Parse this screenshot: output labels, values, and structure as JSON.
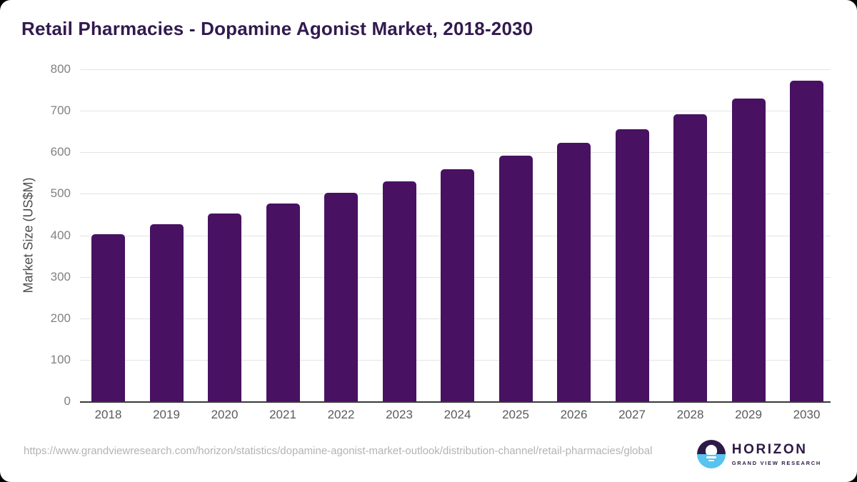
{
  "title": "Retail Pharmacies - Dopamine Agonist Market, 2018-2030",
  "chart_data": {
    "type": "bar",
    "title": "Retail Pharmacies - Dopamine Agonist Market, 2018-2030",
    "categories": [
      "2018",
      "2019",
      "2020",
      "2021",
      "2022",
      "2023",
      "2024",
      "2025",
      "2026",
      "2027",
      "2028",
      "2029",
      "2030"
    ],
    "values": [
      402,
      427,
      452,
      477,
      503,
      530,
      560,
      591,
      623,
      656,
      692,
      730,
      772
    ],
    "xlabel": "",
    "ylabel": "Market Size (US$M)",
    "ylim": [
      0,
      800
    ],
    "ytick_step": 100,
    "yticks": [
      0,
      100,
      200,
      300,
      400,
      500,
      600,
      700,
      800
    ],
    "grid": "horizontal",
    "legend": "none",
    "bar_color": "#481161"
  },
  "colors": {
    "bar": "#481161",
    "title_text": "#321a4e",
    "axis_title_text": "#4c4c4c",
    "tick_text": "#818181",
    "x_label_text": "#5a5a5a",
    "gridline": "#e3e3e3",
    "axis_line": "#383838",
    "url_text": "#b3b3b3",
    "logo_purple": "#2e1a47",
    "logo_blue": "#58c3ee",
    "background": "#ffffff"
  },
  "footer": {
    "source_url": "https://www.grandviewresearch.com/horizon/statistics/dopamine-agonist-market-outlook/distribution-channel/retail-pharmacies/global",
    "logo": {
      "title": "HORIZON",
      "subtitle": "GRAND VIEW RESEARCH"
    }
  }
}
